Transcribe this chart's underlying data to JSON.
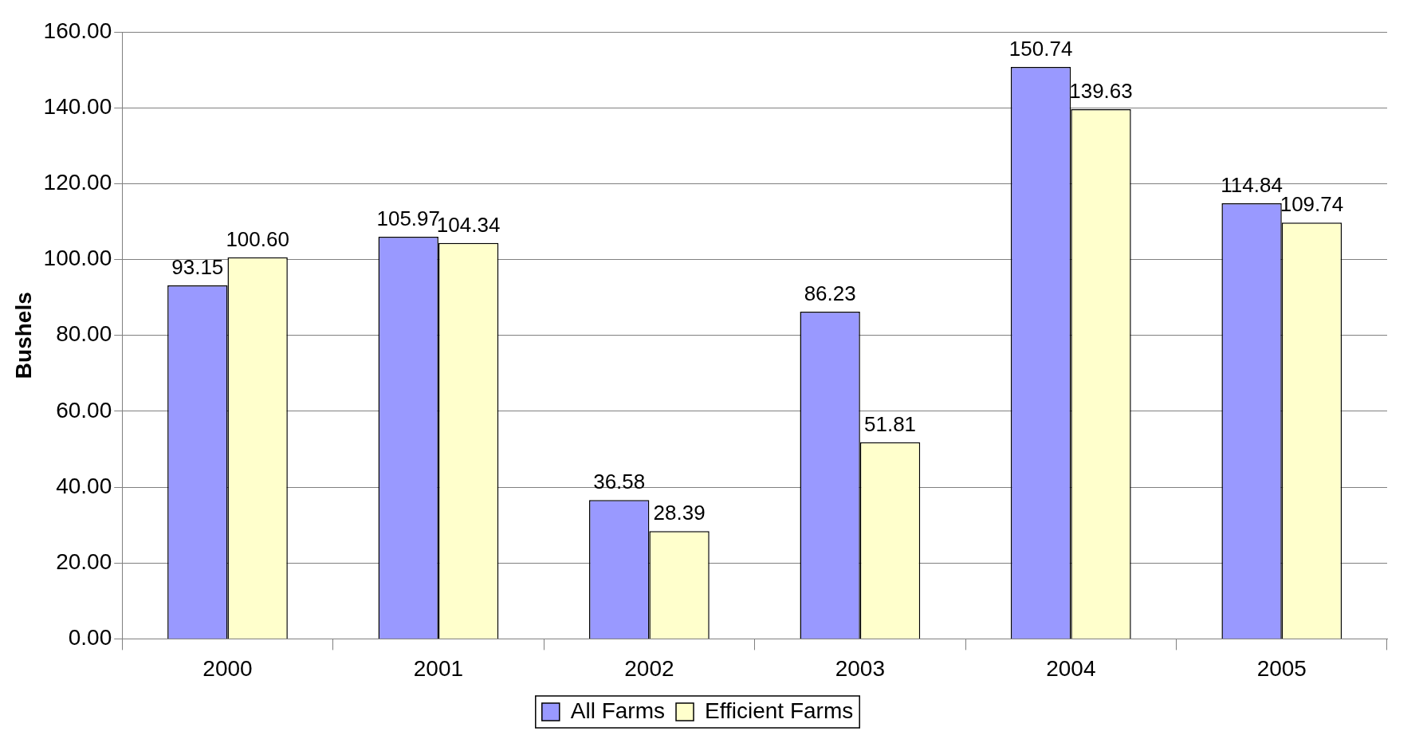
{
  "chart_data": {
    "type": "bar",
    "ylabel": "Bushels",
    "categories": [
      "2000",
      "2001",
      "2002",
      "2003",
      "2004",
      "2005"
    ],
    "series": [
      {
        "name": "All Farms",
        "color": "#9999ff",
        "values": [
          93.15,
          105.97,
          36.58,
          86.23,
          150.74,
          114.84
        ],
        "value_labels": [
          "93.15",
          "105.97",
          "36.58",
          "86.23",
          "150.74",
          "114.84"
        ]
      },
      {
        "name": "Efficient Farms",
        "color": "#ffffcc",
        "values": [
          100.6,
          104.34,
          28.39,
          51.81,
          139.63,
          109.74
        ],
        "value_labels": [
          "100.60",
          "104.34",
          "28.39",
          "51.81",
          "139.63",
          "109.74"
        ]
      }
    ],
    "ylim": [
      0,
      160
    ],
    "yticks": [
      {
        "value": 0,
        "label": "0.00"
      },
      {
        "value": 20,
        "label": "20.00"
      },
      {
        "value": 40,
        "label": "40.00"
      },
      {
        "value": 60,
        "label": "60.00"
      },
      {
        "value": 80,
        "label": "80.00"
      },
      {
        "value": 100,
        "label": "100.00"
      },
      {
        "value": 120,
        "label": "120.00"
      },
      {
        "value": 140,
        "label": "140.00"
      },
      {
        "value": 160,
        "label": "160.00"
      }
    ],
    "grid": "y",
    "legend": "bottom"
  }
}
